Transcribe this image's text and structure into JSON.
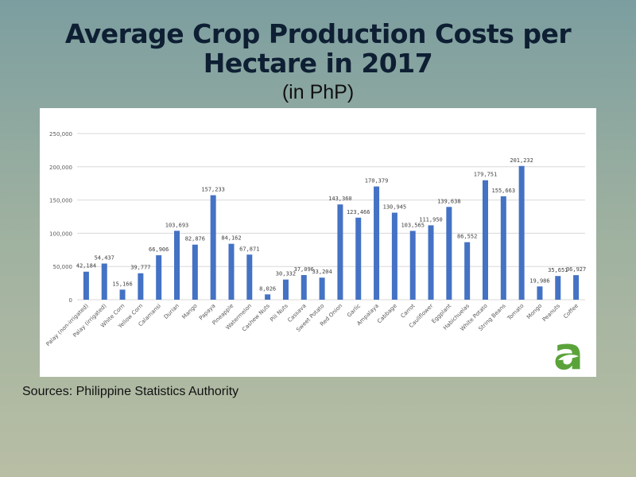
{
  "title_line1": "Average Crop Production Costs per",
  "title_line2": "Hectare in 2017",
  "subtitle": "(in PhP)",
  "source": "Sources: Philippine Statistics Authority",
  "logo_letter": "a",
  "colors": {
    "bar": "#4472c4",
    "grid": "#d9d9d9",
    "logo_green": "#5aa33a"
  },
  "chart_data": {
    "type": "bar",
    "title": "Average Crop Production Costs per Hectare in 2017",
    "subtitle": "(in PhP)",
    "ylim": [
      0,
      250000
    ],
    "yticks": [
      0,
      50000,
      100000,
      150000,
      200000,
      250000
    ],
    "ytick_labels": [
      "0",
      "50,000",
      "100,000",
      "150,000",
      "200,000",
      "250,000"
    ],
    "grid": true,
    "categories": [
      "Palay (non-irrigated)",
      "Palay (irrigated)",
      "White Corn",
      "Yellow Corn",
      "Calamansi",
      "Durian",
      "Mango",
      "Papaya",
      "Pineapple",
      "Watermelon",
      "Cashew Nuts",
      "Pili Nuts",
      "Cassava",
      "Sweet Potato",
      "Red Onion",
      "Garlic",
      "Ampalaya",
      "Cabbage",
      "Carrot",
      "Cauliflower",
      "Eggplant",
      "Habichuelas",
      "White Potato",
      "String Beans",
      "Tomato",
      "Mongo",
      "Peanuts",
      "Coffee"
    ],
    "values": [
      42184,
      54437,
      15166,
      39777,
      66906,
      103693,
      82876,
      157233,
      84162,
      67871,
      8026,
      30332,
      37096,
      33204,
      143360,
      123466,
      170379,
      130945,
      103565,
      111950,
      139638,
      86552,
      179751,
      155663,
      201232,
      19986,
      35651,
      36927
    ],
    "value_labels": [
      "42,184",
      "54,437",
      "15,166",
      "39,777",
      "66,906",
      "103,693",
      "82,876",
      "157,233",
      "84,162",
      "67,871",
      "8,026",
      "30,332",
      "37,096",
      "33,204",
      "143,360",
      "123,466",
      "170,379",
      "130,945",
      "103,565",
      "111,950",
      "139,638",
      "86,552",
      "179,751",
      "155,663",
      "201,232",
      "19,986",
      "35,651",
      "36,927"
    ]
  }
}
